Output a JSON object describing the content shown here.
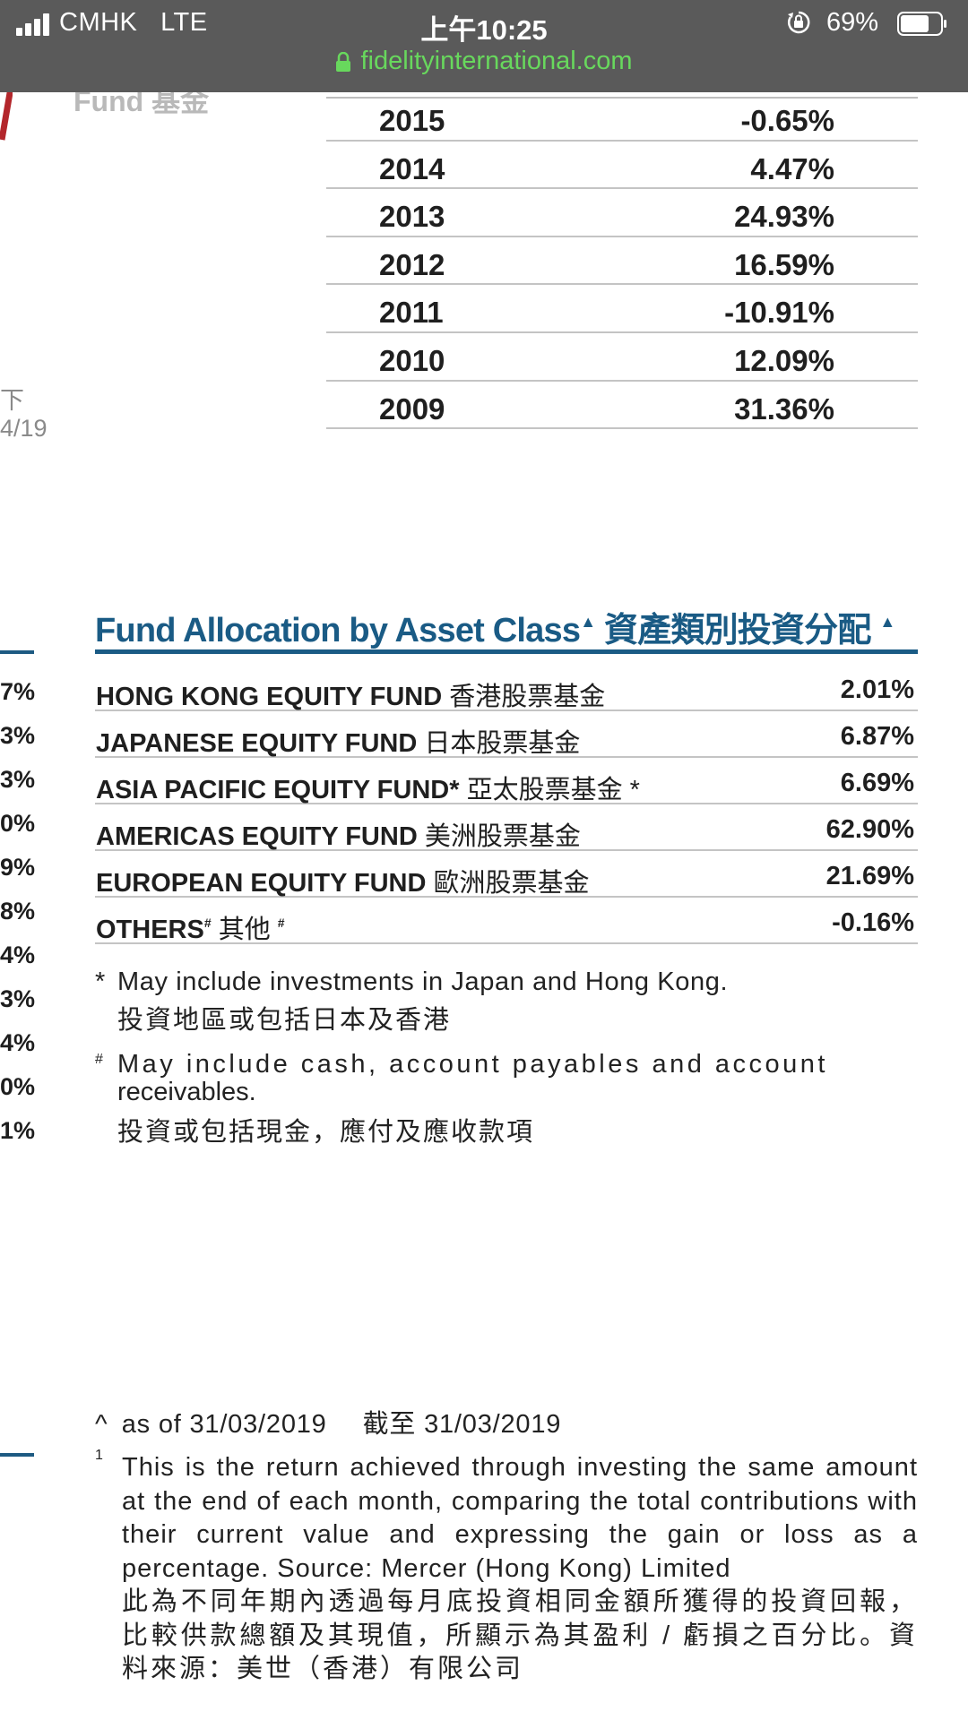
{
  "status_bar": {
    "carrier": "CMHK",
    "network": "LTE",
    "time": "上午10:25",
    "battery": "69%"
  },
  "url_bar": {
    "domain": "fidelityinternational.com"
  },
  "left_column": {
    "fund_label": "Fund 基金",
    "fragments": [
      "下",
      "4/19"
    ],
    "percents": [
      "7%",
      "3%",
      "3%",
      "0%",
      "9%",
      "8%",
      "4%",
      "3%",
      "4%",
      "0%",
      "1%"
    ]
  },
  "returns_table": {
    "rows": [
      {
        "year": "2015",
        "value": "-0.65%"
      },
      {
        "year": "2014",
        "value": "4.47%"
      },
      {
        "year": "2013",
        "value": "24.93%"
      },
      {
        "year": "2012",
        "value": "16.59%"
      },
      {
        "year": "2011",
        "value": "-10.91%"
      },
      {
        "year": "2010",
        "value": "12.09%"
      },
      {
        "year": "2009",
        "value": "31.36%"
      }
    ]
  },
  "allocation": {
    "title_en": "Fund Allocation by Asset Class",
    "title_mark": "▲",
    "title_zh": "資產類別投資分配",
    "rows": [
      {
        "name": "HONG KONG EQUITY FUND",
        "name_zh": "香港股票基金",
        "value": "2.01%"
      },
      {
        "name": "JAPANESE EQUITY FUND",
        "name_zh": "日本股票基金",
        "value": "6.87%"
      },
      {
        "name": "ASIA PACIFIC EQUITY FUND*",
        "name_zh": "亞太股票基金 *",
        "value": "6.69%"
      },
      {
        "name": "AMERICAS EQUITY FUND",
        "name_zh": "美洲股票基金",
        "value": "62.90%"
      },
      {
        "name": "EUROPEAN EQUITY FUND",
        "name_zh": "歐洲股票基金",
        "value": "21.69%"
      },
      {
        "name": "OTHERS",
        "name_sup": "#",
        "name_zh": "其他",
        "name_zh_sup": "#",
        "value": "-0.16%"
      }
    ]
  },
  "notes": {
    "asterisk": {
      "mark": "*",
      "en": "May include investments in Japan and Hong Kong.",
      "zh": "投資地區或包括日本及香港"
    },
    "hash": {
      "mark": "#",
      "en_line1": "May include cash, account payables and account",
      "en_line2": "receivables.",
      "zh": "投資或包括現金，應付及應收款項"
    }
  },
  "as_of": {
    "caret": "^",
    "en": "as of 31/03/2019",
    "zh": "截至 31/03/2019"
  },
  "footnote": {
    "mark": "1",
    "en": "This is the return achieved through investing the same amount at the end of each month, comparing the total contributions with their current value and expressing the gain or loss as a percentage. Source: Mercer (Hong Kong) Limited",
    "zh": "此為不同年期內透過每月底投資相同金額所獲得的投資回報，比較供款總額及其現值，所顯示為其盈利 / 虧損之百分比。資料來源：美世（香港）有限公司"
  }
}
